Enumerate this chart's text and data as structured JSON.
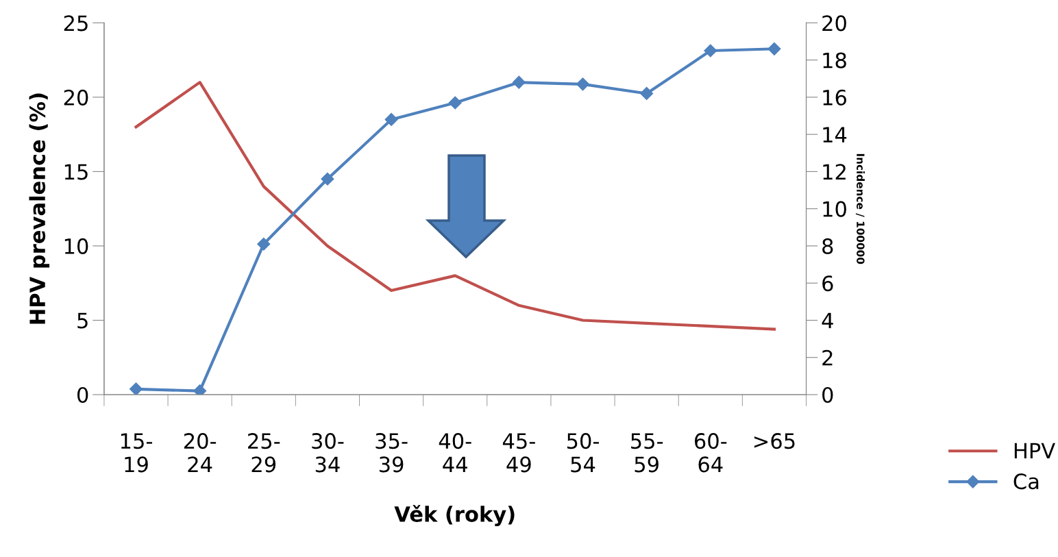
{
  "chart_data": {
    "type": "line",
    "xlabel": "Věk (roky)",
    "ylabel": "HPV prevalence (%)",
    "y2label": "Incidence / 100000",
    "categories": [
      "15-\n19",
      "20-\n24",
      "25-\n29",
      "30-\n34",
      "35-\n39",
      "40-\n44",
      "45-\n49",
      "50-\n54",
      "55-\n59",
      "60-\n64",
      ">65"
    ],
    "series": [
      {
        "name": "HPV",
        "color": "#c0504d",
        "marker": "none",
        "values": [
          18,
          21,
          14,
          10,
          7,
          8,
          6,
          5,
          4.8,
          4.6,
          4.4
        ]
      },
      {
        "name": "Ca",
        "color": "#4f81bd",
        "marker": "diamond",
        "axis": "y2",
        "values": [
          0.3,
          0.2,
          8.1,
          11.6,
          14.8,
          15.7,
          16.8,
          16.7,
          16.2,
          18.5,
          18.6
        ]
      }
    ],
    "ylim": [
      0,
      25
    ],
    "yticks": [
      0,
      5,
      10,
      15,
      20,
      25
    ],
    "y2lim": [
      0,
      20
    ],
    "y2ticks": [
      0,
      2,
      4,
      6,
      8,
      10,
      12,
      14,
      16,
      18,
      20
    ],
    "grid": false,
    "legend": "right"
  }
}
